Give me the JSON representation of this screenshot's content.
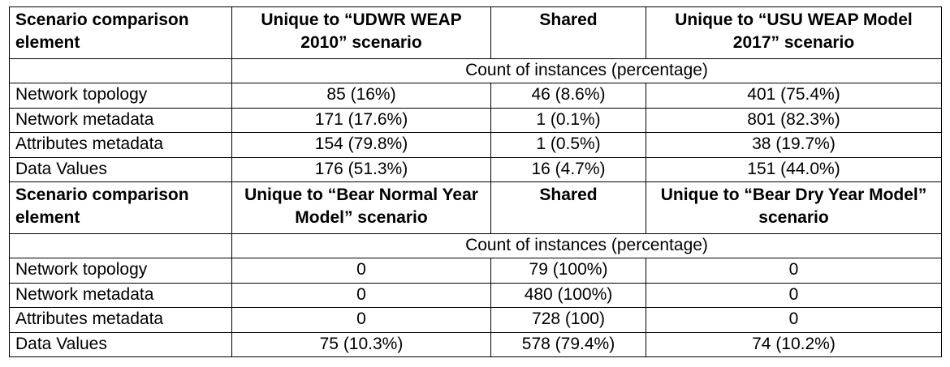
{
  "sections": [
    {
      "header": {
        "element": "Scenario comparison element",
        "unique_a": "Unique to “UDWR WEAP 2010” scenario",
        "shared": "Shared",
        "unique_b": "Unique to “USU WEAP Model 2017” scenario"
      },
      "subheader": "Count of instances (percentage)",
      "rows": [
        {
          "label": "Network topology",
          "a": "85 (16%)",
          "shared": "46 (8.6%)",
          "b": "401 (75.4%)"
        },
        {
          "label": "Network metadata",
          "a": "171 (17.6%)",
          "shared": "1 (0.1%)",
          "b": "801 (82.3%)"
        },
        {
          "label": "Attributes metadata",
          "a": "154 (79.8%)",
          "shared": "1 (0.5%)",
          "b": "38 (19.7%)"
        },
        {
          "label": "Data Values",
          "a": "176 (51.3%)",
          "shared": "16 (4.7%)",
          "b": "151 (44.0%)"
        }
      ]
    },
    {
      "header": {
        "element": "Scenario comparison element",
        "unique_a": "Unique to “Bear Normal Year Model” scenario",
        "shared": "Shared",
        "unique_b": "Unique to “Bear Dry Year Model” scenario"
      },
      "subheader": "Count of instances (percentage)",
      "rows": [
        {
          "label": "Network topology",
          "a": "0",
          "shared": "79 (100%)",
          "b": "0"
        },
        {
          "label": "Network metadata",
          "a": "0",
          "shared": "480 (100%)",
          "b": "0"
        },
        {
          "label": "Attributes metadata",
          "a": "0",
          "shared": "728 (100)",
          "b": "0"
        },
        {
          "label": "Data Values",
          "a": "75 (10.3%)",
          "shared": "578 (79.4%)",
          "b": "74 (10.2%)"
        }
      ]
    }
  ]
}
